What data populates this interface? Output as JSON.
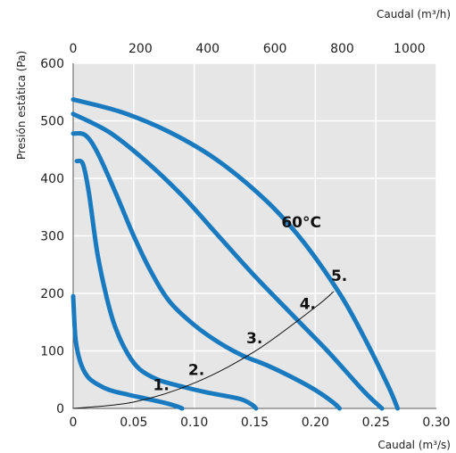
{
  "chart_data": {
    "type": "line",
    "x_axis": {
      "label": "Caudal (m³/s)",
      "range": [
        0,
        0.3
      ],
      "ticks": [
        "0",
        "0.05",
        "0.10",
        "0.15",
        "0.20",
        "0.25",
        "0.30"
      ]
    },
    "x2_axis": {
      "label": "Caudal (m³/h)",
      "range": [
        0,
        1080
      ],
      "ticks": [
        "0",
        "200",
        "400",
        "600",
        "800",
        "1000"
      ]
    },
    "y_axis": {
      "label": "Presión estática (Pa)",
      "range": [
        0,
        600
      ],
      "ticks": [
        "0",
        "100",
        "200",
        "300",
        "400",
        "500",
        "600"
      ]
    },
    "grid": true,
    "colors": {
      "curve": "#1a7abf",
      "system_curve": "#111111",
      "grid": "#d0d0d0",
      "plot_background": "#e6e6e6"
    },
    "series": [
      {
        "name": "1.",
        "x": [
          0.0,
          0.002,
          0.006,
          0.012,
          0.02,
          0.03,
          0.045,
          0.06,
          0.075,
          0.085,
          0.09
        ],
        "y": [
          195,
          120,
          80,
          55,
          42,
          32,
          24,
          17,
          10,
          4,
          0
        ]
      },
      {
        "name": "2.",
        "x": [
          0.003,
          0.008,
          0.013,
          0.02,
          0.028,
          0.035,
          0.045,
          0.055,
          0.07,
          0.09,
          0.11,
          0.13,
          0.14,
          0.148,
          0.151
        ],
        "y": [
          430,
          425,
          375,
          270,
          190,
          140,
          95,
          68,
          50,
          38,
          28,
          20,
          15,
          6,
          0
        ]
      },
      {
        "name": "3.",
        "x": [
          0.0,
          0.01,
          0.02,
          0.035,
          0.05,
          0.065,
          0.08,
          0.1,
          0.12,
          0.14,
          0.16,
          0.18,
          0.2,
          0.215,
          0.22
        ],
        "y": [
          478,
          475,
          445,
          375,
          300,
          235,
          185,
          145,
          115,
          92,
          75,
          55,
          32,
          10,
          0
        ]
      },
      {
        "name": "4.",
        "x": [
          0.0,
          0.03,
          0.06,
          0.09,
          0.12,
          0.15,
          0.18,
          0.21,
          0.24,
          0.255
        ],
        "y": [
          512,
          480,
          430,
          370,
          300,
          230,
          165,
          100,
          30,
          0
        ]
      },
      {
        "name": "5.",
        "x": [
          0.0,
          0.04,
          0.08,
          0.12,
          0.16,
          0.19,
          0.22,
          0.24,
          0.26,
          0.268
        ],
        "y": [
          537,
          515,
          480,
          430,
          360,
          290,
          200,
          125,
          40,
          0
        ]
      },
      {
        "name": "system",
        "x": [
          0.0,
          0.05,
          0.1,
          0.15,
          0.2,
          0.215
        ],
        "y": [
          0,
          11,
          44,
          99,
          176,
          203
        ]
      }
    ],
    "annotations": [
      {
        "text": "1.",
        "x": 0.066,
        "y": 32
      },
      {
        "text": "2.",
        "x": 0.095,
        "y": 58
      },
      {
        "text": "3.",
        "x": 0.143,
        "y": 113
      },
      {
        "text": "4.",
        "x": 0.187,
        "y": 173
      },
      {
        "text": "5.",
        "x": 0.213,
        "y": 222
      },
      {
        "text": "60°C",
        "x": 0.172,
        "y": 315
      }
    ]
  }
}
